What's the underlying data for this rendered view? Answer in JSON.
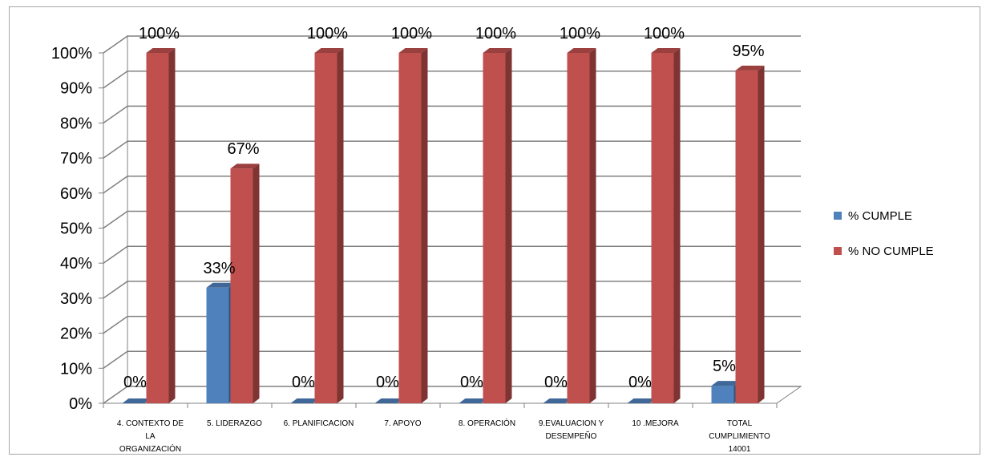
{
  "chart_data": {
    "type": "bar",
    "categories": [
      [
        "4. CONTEXTO DE",
        "LA",
        "ORGANIZACIÓN"
      ],
      [
        "5. LIDERAZGO"
      ],
      [
        "6. PLANIFICACION"
      ],
      [
        "7. APOYO"
      ],
      [
        "8. OPERACIÓN"
      ],
      [
        "9.EVALUACION Y",
        "DESEMPEÑO"
      ],
      [
        "10 .MEJORA"
      ],
      [
        "TOTAL",
        "CUMPLIMIENTO",
        "14001"
      ]
    ],
    "series": [
      {
        "name": "% CUMPLE",
        "color": "#4f81bd",
        "values": [
          0,
          33,
          0,
          0,
          0,
          0,
          0,
          5
        ],
        "labels": [
          "0%",
          "33%",
          "0%",
          "0%",
          "0%",
          "0%",
          "0%",
          "5%"
        ]
      },
      {
        "name": "% NO CUMPLE",
        "color": "#c0504d",
        "values": [
          100,
          67,
          100,
          100,
          100,
          100,
          100,
          95
        ],
        "labels": [
          "100%",
          "67%",
          "100%",
          "100%",
          "100%",
          "100%",
          "100%",
          "95%"
        ]
      }
    ],
    "yticks": [
      "0%",
      "10%",
      "20%",
      "30%",
      "40%",
      "50%",
      "60%",
      "70%",
      "80%",
      "90%",
      "100%"
    ],
    "ylim": [
      0,
      100
    ],
    "grid": true,
    "legend": "right",
    "title": "",
    "xlabel": "",
    "ylabel": ""
  }
}
